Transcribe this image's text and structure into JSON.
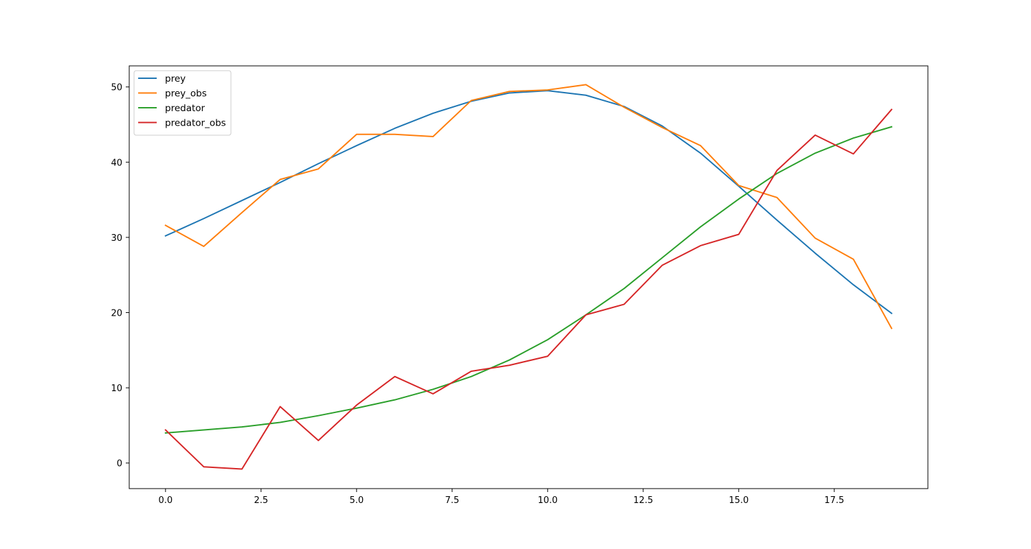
{
  "chart_data": {
    "type": "line",
    "title": "",
    "xlabel": "",
    "ylabel": "",
    "xlim": [
      -0.95,
      19.95
    ],
    "ylim": [
      -3.4,
      52.8
    ],
    "xticks": [
      0.0,
      2.5,
      5.0,
      7.5,
      10.0,
      12.5,
      15.0,
      17.5
    ],
    "xtick_labels": [
      "0.0",
      "2.5",
      "5.0",
      "7.5",
      "10.0",
      "12.5",
      "15.0",
      "17.5"
    ],
    "yticks": [
      0,
      10,
      20,
      30,
      40,
      50
    ],
    "ytick_labels": [
      "0",
      "10",
      "20",
      "30",
      "40",
      "50"
    ],
    "grid": false,
    "legend_position": "top-left",
    "x": [
      0,
      1,
      2,
      3,
      4,
      5,
      6,
      7,
      8,
      9,
      10,
      11,
      12,
      13,
      14,
      15,
      16,
      17,
      18,
      19
    ],
    "series": [
      {
        "name": "prey",
        "color": "#1f77b4",
        "values": [
          30.2,
          32.5,
          34.9,
          37.3,
          39.8,
          42.2,
          44.5,
          46.5,
          48.1,
          49.2,
          49.5,
          48.9,
          47.4,
          44.8,
          41.2,
          36.8,
          32.3,
          27.9,
          23.7,
          19.9
        ]
      },
      {
        "name": "prey_obs",
        "color": "#ff7f0e",
        "values": [
          31.6,
          28.8,
          33.3,
          37.7,
          39.1,
          43.7,
          43.7,
          43.4,
          48.2,
          49.4,
          49.6,
          50.3,
          47.3,
          44.6,
          42.2,
          36.9,
          35.3,
          29.9,
          27.1,
          17.9
        ]
      },
      {
        "name": "predator",
        "color": "#2ca02c",
        "values": [
          4.0,
          4.4,
          4.8,
          5.4,
          6.3,
          7.3,
          8.4,
          9.8,
          11.5,
          13.7,
          16.4,
          19.7,
          23.2,
          27.3,
          31.4,
          35.1,
          38.5,
          41.2,
          43.2,
          44.7
        ]
      },
      {
        "name": "predator_obs",
        "color": "#d62728",
        "values": [
          4.4,
          -0.5,
          -0.8,
          7.5,
          3.0,
          7.7,
          11.5,
          9.2,
          12.2,
          13.0,
          14.2,
          19.7,
          21.1,
          26.3,
          28.9,
          30.4,
          38.9,
          43.6,
          41.1,
          47.0
        ]
      }
    ]
  }
}
